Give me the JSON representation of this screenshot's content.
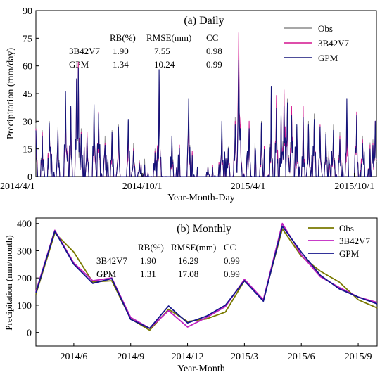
{
  "chart_data": [
    {
      "type": "line",
      "title": "(a) Daily",
      "xlabel": "Year-Month-Day",
      "ylabel": "Precipitation (mm/day)",
      "ylim": [
        0,
        90
      ],
      "xlim": [
        "2014-04-01",
        "2015-11-08"
      ],
      "yticks": [
        0,
        15,
        30,
        45,
        60,
        75,
        90
      ],
      "xticks": [
        "2014/4/1",
        "2014/10/1",
        "2015/4/1",
        "2015/10/1"
      ],
      "legend_position": "top-right",
      "grid": false,
      "stats": {
        "headers": [
          "RB(%)",
          "RMSE(mm)",
          "CC"
        ],
        "rows": [
          {
            "name": "3B42V7",
            "rb": "1.90",
            "rmse": "7.55",
            "cc": "0.98"
          },
          {
            "name": "GPM",
            "rb": "1.34",
            "rmse": "10.24",
            "cc": "0.99"
          }
        ]
      },
      "series": [
        {
          "name": "Obs",
          "color": "#8a8a8a"
        },
        {
          "name": "3B42V7",
          "color": "#d4148e"
        },
        {
          "name": "GPM",
          "color": "#141478"
        }
      ],
      "peaks": [
        {
          "x": "2014-04-01",
          "obs": 29,
          "trmm": 26,
          "gpm": 25
        },
        {
          "x": "2014-04-12",
          "obs": 25,
          "trmm": 24,
          "gpm": 22
        },
        {
          "x": "2014-04-24",
          "obs": 30,
          "trmm": 28,
          "gpm": 29
        },
        {
          "x": "2014-05-09",
          "obs": 27,
          "trmm": 24,
          "gpm": 25
        },
        {
          "x": "2014-05-22",
          "obs": 42,
          "trmm": 38,
          "gpm": 46
        },
        {
          "x": "2014-05-31",
          "obs": 33,
          "trmm": 37,
          "gpm": 38
        },
        {
          "x": "2014-06-10",
          "obs": 46,
          "trmm": 52,
          "gpm": 53
        },
        {
          "x": "2014-06-13",
          "obs": 58,
          "trmm": 62,
          "gpm": 59
        },
        {
          "x": "2014-06-18",
          "obs": 26,
          "trmm": 24,
          "gpm": 23
        },
        {
          "x": "2014-06-28",
          "obs": 22,
          "trmm": 24,
          "gpm": 21
        },
        {
          "x": "2014-07-10",
          "obs": 37,
          "trmm": 33,
          "gpm": 39
        },
        {
          "x": "2014-07-18",
          "obs": 33,
          "trmm": 35,
          "gpm": 34
        },
        {
          "x": "2014-07-29",
          "obs": 22,
          "trmm": 18,
          "gpm": 17
        },
        {
          "x": "2014-08-10",
          "obs": 25,
          "trmm": 23,
          "gpm": 24
        },
        {
          "x": "2014-08-21",
          "obs": 28,
          "trmm": 26,
          "gpm": 27
        },
        {
          "x": "2014-09-07",
          "obs": 30,
          "trmm": 26,
          "gpm": 31
        },
        {
          "x": "2014-09-16",
          "obs": 18,
          "trmm": 15,
          "gpm": 14
        },
        {
          "x": "2014-09-26",
          "obs": 9,
          "trmm": 8,
          "gpm": 7
        },
        {
          "x": "2014-10-23",
          "obs": 15,
          "trmm": 14,
          "gpm": 13
        },
        {
          "x": "2014-10-30",
          "obs": 55,
          "trmm": 52,
          "gpm": 58
        },
        {
          "x": "2014-11-21",
          "obs": 22,
          "trmm": 20,
          "gpm": 22
        },
        {
          "x": "2014-12-20",
          "obs": 42,
          "trmm": 38,
          "gpm": 42
        },
        {
          "x": "2015-01-22",
          "obs": 6,
          "trmm": 5,
          "gpm": 5
        },
        {
          "x": "2015-02-15",
          "obs": 28,
          "trmm": 26,
          "gpm": 30
        },
        {
          "x": "2015-02-26",
          "obs": 16,
          "trmm": 14,
          "gpm": 15
        },
        {
          "x": "2015-03-10",
          "obs": 32,
          "trmm": 30,
          "gpm": 28
        },
        {
          "x": "2015-03-16",
          "obs": 60,
          "trmm": 78,
          "gpm": 63
        },
        {
          "x": "2015-03-19",
          "obs": 28,
          "trmm": 25,
          "gpm": 26
        },
        {
          "x": "2015-04-03",
          "obs": 28,
          "trmm": 30,
          "gpm": 26
        },
        {
          "x": "2015-04-24",
          "obs": 30,
          "trmm": 26,
          "gpm": 29
        },
        {
          "x": "2015-05-11",
          "obs": 46,
          "trmm": 44,
          "gpm": 49
        },
        {
          "x": "2015-05-20",
          "obs": 40,
          "trmm": 44,
          "gpm": 37
        },
        {
          "x": "2015-05-28",
          "obs": 34,
          "trmm": 32,
          "gpm": 33
        },
        {
          "x": "2015-06-02",
          "obs": 45,
          "trmm": 47,
          "gpm": 38
        },
        {
          "x": "2015-06-08",
          "obs": 42,
          "trmm": 38,
          "gpm": 40
        },
        {
          "x": "2015-06-15",
          "obs": 35,
          "trmm": 38,
          "gpm": 33
        },
        {
          "x": "2015-06-24",
          "obs": 27,
          "trmm": 25,
          "gpm": 28
        },
        {
          "x": "2015-07-05",
          "obs": 36,
          "trmm": 38,
          "gpm": 32
        },
        {
          "x": "2015-07-14",
          "obs": 30,
          "trmm": 27,
          "gpm": 28
        },
        {
          "x": "2015-07-24",
          "obs": 34,
          "trmm": 30,
          "gpm": 31
        },
        {
          "x": "2015-08-03",
          "obs": 26,
          "trmm": 28,
          "gpm": 27
        },
        {
          "x": "2015-08-13",
          "obs": 24,
          "trmm": 20,
          "gpm": 23
        },
        {
          "x": "2015-08-26",
          "obs": 28,
          "trmm": 22,
          "gpm": 25
        },
        {
          "x": "2015-09-06",
          "obs": 24,
          "trmm": 22,
          "gpm": 20
        },
        {
          "x": "2015-09-18",
          "obs": 36,
          "trmm": 30,
          "gpm": 42
        },
        {
          "x": "2015-10-05",
          "obs": 32,
          "trmm": 35,
          "gpm": 33
        },
        {
          "x": "2015-10-15",
          "obs": 22,
          "trmm": 20,
          "gpm": 18
        },
        {
          "x": "2015-11-02",
          "obs": 20,
          "trmm": 18,
          "gpm": 17
        },
        {
          "x": "2015-11-06",
          "obs": 28,
          "trmm": 30,
          "gpm": 30
        }
      ]
    },
    {
      "type": "line",
      "title": "(b) Monthly",
      "xlabel": "Year-Month",
      "ylabel": "Precipitation (mm/month)",
      "ylim": [
        -50,
        420
      ],
      "yticks": [
        0,
        100,
        200,
        300,
        400
      ],
      "xticks": [
        "2014/6",
        "2014/9",
        "2014/12",
        "2015/3",
        "2015/6",
        "2015/9"
      ],
      "legend_position": "top-right",
      "grid": false,
      "stats": {
        "headers": [
          "RB(%)",
          "RMSE(mm)",
          "CC"
        ],
        "rows": [
          {
            "name": "3B42V7",
            "rb": "1.90",
            "rmse": "16.29",
            "cc": "0.99"
          },
          {
            "name": "GPM",
            "rb": "1.31",
            "rmse": "17.08",
            "cc": "0.99"
          }
        ]
      },
      "categories": [
        "2014/4",
        "2014/5",
        "2014/6",
        "2014/7",
        "2014/8",
        "2014/9",
        "2014/10",
        "2014/11",
        "2014/12",
        "2015/1",
        "2015/2",
        "2015/3",
        "2015/4",
        "2015/5",
        "2015/6",
        "2015/7",
        "2015/8",
        "2015/9",
        "2015/10"
      ],
      "series": [
        {
          "name": "Obs",
          "color": "#7a7a00",
          "values": [
            140,
            365,
            295,
            185,
            190,
            50,
            8,
            85,
            40,
            50,
            75,
            190,
            120,
            380,
            280,
            225,
            185,
            120,
            90
          ]
        },
        {
          "name": "3B42V7",
          "color": "#c020c0",
          "values": [
            150,
            375,
            255,
            190,
            200,
            55,
            15,
            80,
            20,
            55,
            95,
            195,
            120,
            400,
            285,
            205,
            165,
            130,
            110
          ]
        },
        {
          "name": "GPM",
          "color": "#14148c",
          "values": [
            145,
            372,
            250,
            180,
            198,
            48,
            15,
            97,
            35,
            60,
            100,
            190,
            115,
            390,
            295,
            210,
            160,
            130,
            105
          ]
        }
      ]
    }
  ]
}
